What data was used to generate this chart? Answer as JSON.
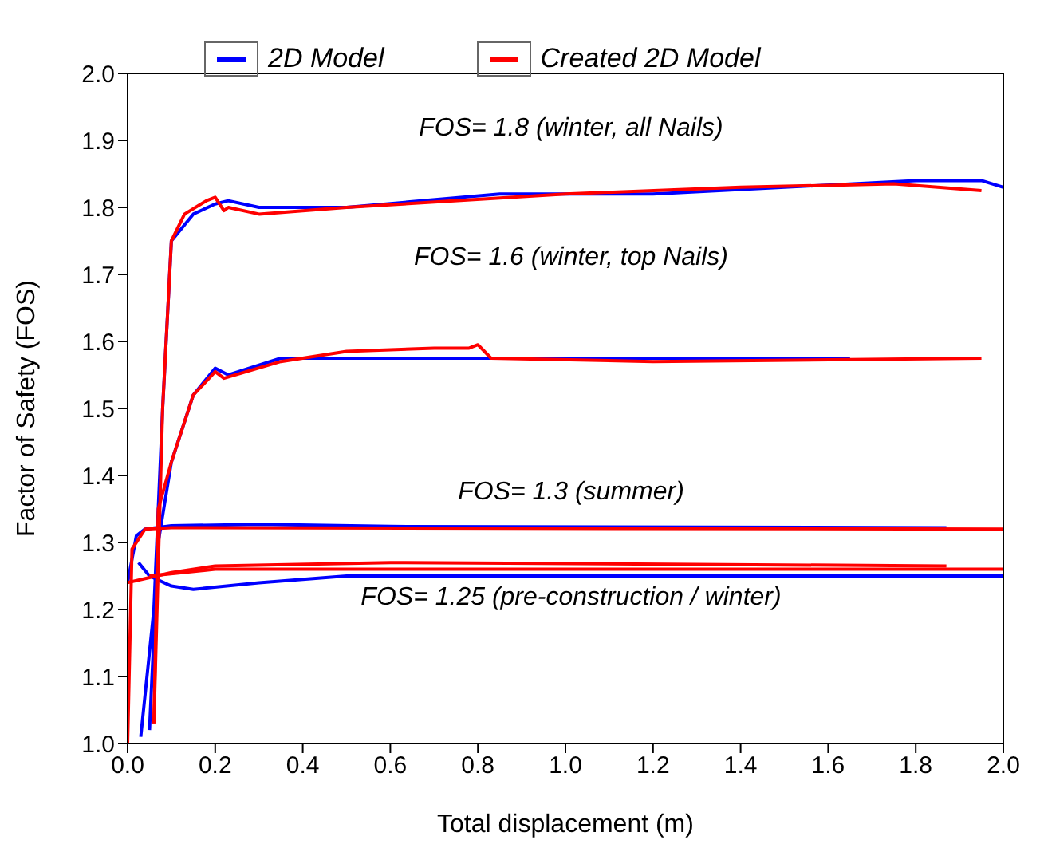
{
  "chart_data": {
    "type": "line",
    "xlabel": "Total displacement (m)",
    "ylabel": "Factor of Safety (FOS)",
    "xlim": [
      0,
      2
    ],
    "xticks": [
      {
        "value": 0,
        "label": "0.0"
      },
      0.2,
      0.4,
      0.6,
      0.8,
      {
        "value": 1,
        "label": "1.0"
      },
      1.2,
      1.4,
      1.6,
      1.8,
      {
        "value": 2,
        "label": "2.0"
      }
    ],
    "ylim": [
      1,
      2
    ],
    "yticks": [
      {
        "value": 1,
        "label": "1.0"
      },
      1.1,
      1.2,
      1.3,
      1.4,
      1.5,
      1.6,
      1.7,
      1.8,
      1.9,
      {
        "value": 2,
        "label": "2.0"
      }
    ],
    "legend": "top",
    "marker": "none",
    "line_style": "solid",
    "annotations": [
      "FOS= 1.8 (winter, all Nails)",
      "FOS= 1.6 (winter, top Nails)",
      "FOS= 1.3 (summer)",
      "FOS= 1.25 (pre-construction / winter)"
    ],
    "series": [
      {
        "name": "2D Model",
        "color": "#0000ff",
        "x": [
          0.03,
          0.06,
          0.08,
          0.1,
          0.15,
          0.2,
          0.23,
          0.3,
          0.5,
          0.85,
          1.2,
          1.8,
          1.95,
          2.0
        ],
        "values": [
          1.01,
          1.2,
          1.5,
          1.75,
          1.79,
          1.805,
          1.81,
          1.8,
          1.8,
          1.82,
          1.82,
          1.84,
          1.84,
          1.83
        ]
      },
      {
        "color": "#0000ff",
        "x": [
          0.05,
          0.07,
          0.1,
          0.15,
          0.2,
          0.23,
          0.35,
          1.65
        ],
        "values": [
          1.02,
          1.3,
          1.42,
          1.52,
          1.56,
          1.55,
          1.575,
          1.575
        ]
      },
      {
        "color": "#0000ff",
        "x": [
          0.0,
          0.02,
          0.04,
          0.1,
          0.3,
          0.6,
          1.87
        ],
        "values": [
          1.24,
          1.31,
          1.32,
          1.325,
          1.327,
          1.324,
          1.322
        ]
      },
      {
        "color": "#0000ff",
        "x": [
          0.025,
          0.05,
          0.1,
          0.15,
          0.3,
          0.5,
          2.0
        ],
        "values": [
          1.27,
          1.25,
          1.235,
          1.23,
          1.24,
          1.25,
          1.25
        ]
      },
      {
        "name": "Created 2D Model",
        "color": "#ff0000",
        "x": [
          0.06,
          0.08,
          0.1,
          0.13,
          0.18,
          0.2,
          0.22,
          0.23,
          0.3,
          0.5,
          1.0,
          1.4,
          1.75,
          1.95
        ],
        "values": [
          1.03,
          1.5,
          1.75,
          1.79,
          1.81,
          1.815,
          1.795,
          1.8,
          1.79,
          1.8,
          1.82,
          1.83,
          1.835,
          1.825
        ]
      },
      {
        "color": "#ff0000",
        "x": [
          0.06,
          0.07,
          0.1,
          0.15,
          0.2,
          0.22,
          0.35,
          0.5,
          0.7,
          0.78,
          0.8,
          0.83,
          1.2,
          1.95
        ],
        "values": [
          1.03,
          1.35,
          1.42,
          1.52,
          1.555,
          1.545,
          1.57,
          1.585,
          1.59,
          1.59,
          1.595,
          1.575,
          1.57,
          1.575
        ]
      },
      {
        "color": "#ff0000",
        "x": [
          0.0,
          0.01,
          0.04,
          0.1,
          2.0
        ],
        "values": [
          1.0,
          1.29,
          1.32,
          1.322,
          1.32
        ]
      },
      {
        "color": "#ff0000",
        "x": [
          0.0,
          0.1,
          0.2,
          0.6,
          1.87
        ],
        "values": [
          1.24,
          1.255,
          1.265,
          1.27,
          1.265
        ]
      },
      {
        "color": "#ff0000",
        "x": [
          0.05,
          0.2,
          2.0
        ],
        "values": [
          1.25,
          1.26,
          1.26
        ]
      }
    ]
  }
}
